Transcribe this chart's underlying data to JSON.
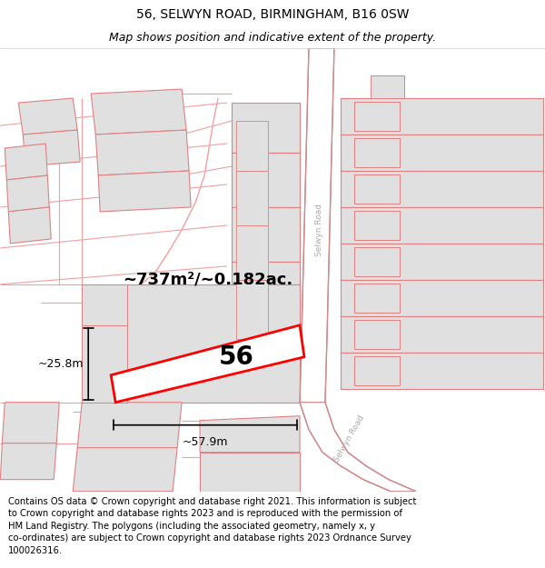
{
  "title": "56, SELWYN ROAD, BIRMINGHAM, B16 0SW",
  "subtitle": "Map shows position and indicative extent of the property.",
  "footer": "Contains OS data © Crown copyright and database right 2021. This information is subject\nto Crown copyright and database rights 2023 and is reproduced with the permission of\nHM Land Registry. The polygons (including the associated geometry, namely x, y\nco-ordinates) are subject to Crown copyright and database rights 2023 Ordnance Survey\n100026316.",
  "bg_color": "#ffffff",
  "building_fill": "#e0e0e0",
  "building_stroke": "#e08080",
  "road_line_color": "#f0a0a0",
  "road_main_color": "#d08888",
  "highlight_fill": "#ffffff",
  "highlight_stroke": "#ff0000",
  "label_56": "56",
  "area_label": "~737m²/~0.182ac.",
  "width_label": "~57.9m",
  "height_label": "~25.8m",
  "road_label_upper": "Selwyn Road",
  "road_label_lower": "Selwyn Road",
  "title_fontsize": 10,
  "subtitle_fontsize": 9,
  "footer_fontsize": 7.2,
  "label56_fontsize": 20,
  "area_fontsize": 13,
  "dim_fontsize": 9
}
